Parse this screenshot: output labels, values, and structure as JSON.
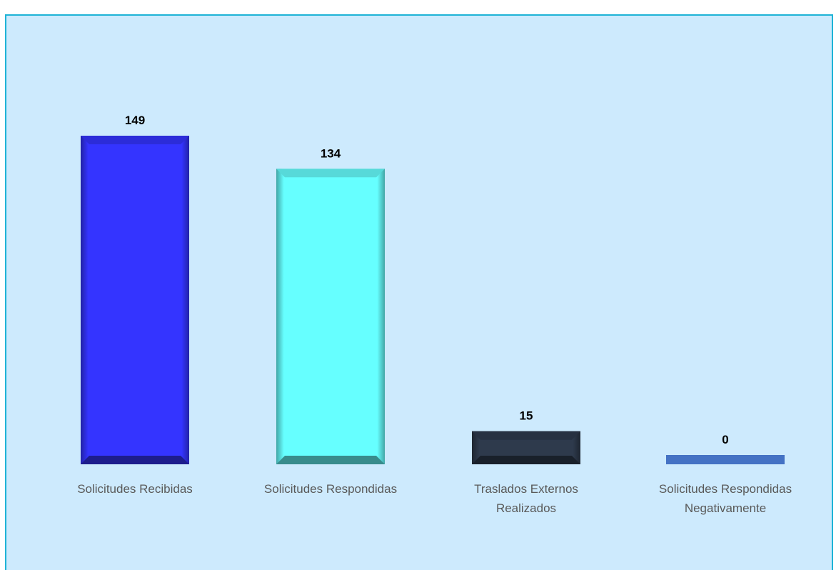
{
  "chart_data": {
    "type": "bar",
    "categories": [
      [
        "Solicitudes Recibidas"
      ],
      [
        "Solicitudes Respondidas"
      ],
      [
        "Traslados Externos",
        "Realizados"
      ],
      [
        "Solicitudes Respondidas",
        "Negativamente"
      ]
    ],
    "values": [
      149,
      134,
      15,
      0
    ],
    "data_labels": [
      "149",
      "134",
      "15",
      "0"
    ],
    "colors": [
      "#3434ff",
      "#66ffff",
      "#2e3a4c",
      "#4472c4"
    ],
    "ylim": [
      0,
      149
    ],
    "grid": false,
    "legend": "none"
  }
}
